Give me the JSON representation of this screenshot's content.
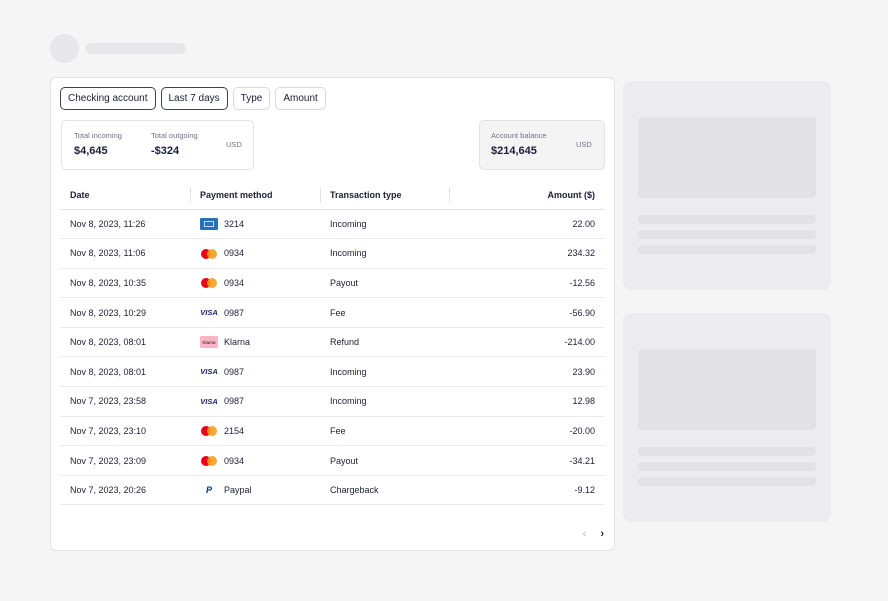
{
  "filters": [
    {
      "label": "Checking account",
      "active": true
    },
    {
      "label": "Last 7 days",
      "active": true
    },
    {
      "label": "Type",
      "active": false
    },
    {
      "label": "Amount",
      "active": false
    }
  ],
  "summary": {
    "incoming_label": "Total incoming",
    "incoming_value": "$4,645",
    "outgoing_label": "Total outgoing",
    "outgoing_value": "-$324",
    "currency": "USD"
  },
  "balance": {
    "label": "Account balance",
    "value": "$214,645",
    "currency": "USD"
  },
  "table": {
    "headers": [
      "Date",
      "Payment method",
      "Transaction type",
      "Amount ($)"
    ],
    "rows": [
      {
        "date": "Nov 8, 2023, 11:26",
        "icon": "amex-card-icon",
        "method": "3214",
        "type": "Incoming",
        "amount": "22.00"
      },
      {
        "date": "Nov 8, 2023, 11:06",
        "icon": "mastercard-icon",
        "method": "0934",
        "type": "Incoming",
        "amount": "234.32"
      },
      {
        "date": "Nov 8, 2023, 10:35",
        "icon": "mastercard-icon",
        "method": "0934",
        "type": "Payout",
        "amount": "-12.56"
      },
      {
        "date": "Nov 8, 2023, 10:29",
        "icon": "visa-icon",
        "method": "0987",
        "type": "Fee",
        "amount": "-56.90"
      },
      {
        "date": "Nov 8, 2023, 08:01",
        "icon": "klarna-icon",
        "method": "Klarna",
        "type": "Refund",
        "amount": "-214.00"
      },
      {
        "date": "Nov 8, 2023, 08:01",
        "icon": "visa-icon",
        "method": "0987",
        "type": "Incoming",
        "amount": "23.90"
      },
      {
        "date": "Nov 7, 2023, 23:58",
        "icon": "visa-icon",
        "method": "0987",
        "type": "Incoming",
        "amount": "12.98"
      },
      {
        "date": "Nov 7, 2023, 23:10",
        "icon": "mastercard-icon",
        "method": "2154",
        "type": "Fee",
        "amount": "-20.00"
      },
      {
        "date": "Nov 7, 2023, 23:09",
        "icon": "mastercard-icon",
        "method": "0934",
        "type": "Payout",
        "amount": "-34.21"
      },
      {
        "date": "Nov 7, 2023, 20:26",
        "icon": "paypal-icon",
        "method": "Paypal",
        "type": "Chargeback",
        "amount": "-9.12"
      }
    ]
  },
  "pagination": {
    "prev_icon": "chevron-left-icon",
    "next_icon": "chevron-right-icon",
    "prev_glyph": "‹",
    "next_glyph": "›"
  },
  "brand_logos": {
    "visa_text": "VISA",
    "klarna_text": "Klarna",
    "paypal_text": "P"
  }
}
